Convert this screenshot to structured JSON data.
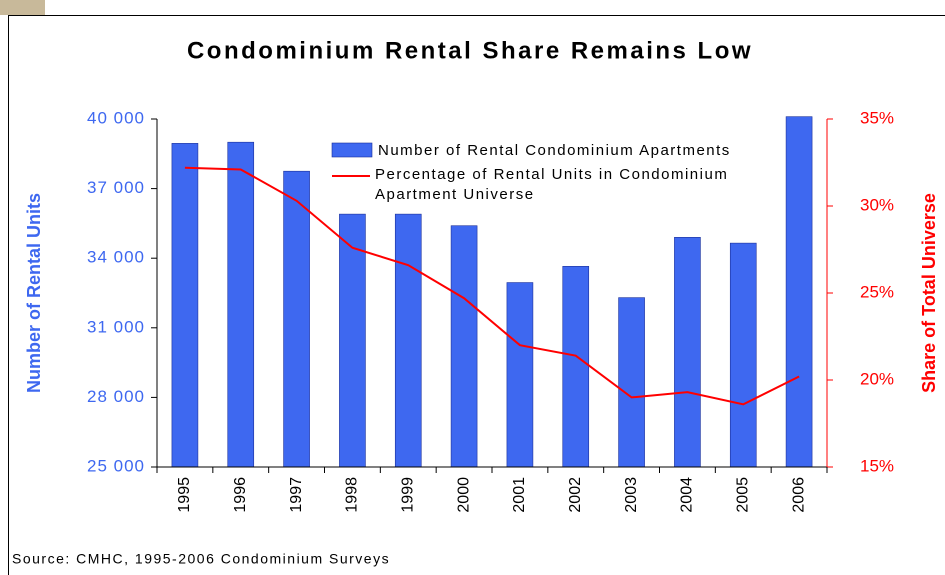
{
  "chart_data": {
    "type": "bar-line",
    "title": "Condominium Rental Share Remains Low",
    "y_label": "Number of Rental Units",
    "y2_label": "Share of Total Universe",
    "source": "Source: CMHC, 1995-2006 Condominium Surveys",
    "categories": [
      "1995",
      "1996",
      "1997",
      "1998",
      "1999",
      "2000",
      "2001",
      "2002",
      "2003",
      "2004",
      "2005",
      "2006"
    ],
    "ylim": [
      25000,
      40000
    ],
    "yticks": [
      {
        "value": 25000,
        "label": "25 000"
      },
      {
        "value": 28000,
        "label": "28 000"
      },
      {
        "value": 31000,
        "label": "31 000"
      },
      {
        "value": 34000,
        "label": "34 000"
      },
      {
        "value": 37000,
        "label": "37 000"
      },
      {
        "value": 40000,
        "label": "40 000"
      }
    ],
    "y2lim": [
      15,
      35
    ],
    "y2ticks": [
      {
        "value": 15,
        "label": "15%"
      },
      {
        "value": 20,
        "label": "20%"
      },
      {
        "value": 25,
        "label": "25%"
      },
      {
        "value": 30,
        "label": "30%"
      },
      {
        "value": 35,
        "label": "35%"
      }
    ],
    "legend": "top-center",
    "series": [
      {
        "name": "Number of Rental Condominium Apartments",
        "type": "bar",
        "color": "#3e68f0",
        "values": [
          38950,
          39000,
          37750,
          35900,
          35900,
          35400,
          32950,
          33650,
          32300,
          34900,
          34650,
          40100
        ]
      },
      {
        "name": "Percentage of Rental Units in Condominium Apartment Universe",
        "type": "line",
        "axis": "y2",
        "color": "#ff0000",
        "values": [
          32.2,
          32.1,
          30.3,
          27.6,
          26.6,
          24.7,
          22.0,
          21.4,
          19.0,
          19.3,
          18.6,
          20.2
        ]
      }
    ]
  }
}
